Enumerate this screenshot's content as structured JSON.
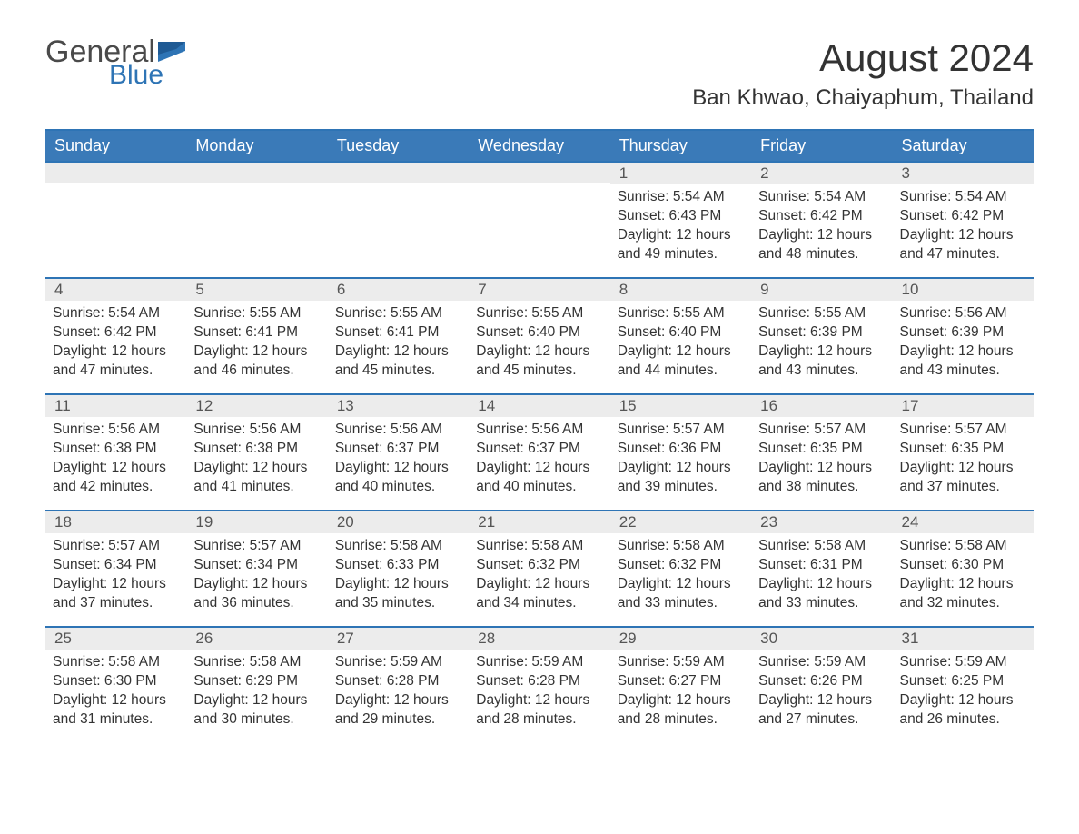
{
  "logo": {
    "text1": "General",
    "text2": "Blue"
  },
  "title": "August 2024",
  "location": "Ban Khwao, Chaiyaphum, Thailand",
  "colors": {
    "header_bg": "#3a7ab8",
    "header_text": "#ffffff",
    "accent_border": "#2e74b5",
    "daynum_bg": "#ececec",
    "text": "#333333",
    "logo_gray": "#4a4a4a",
    "logo_blue": "#2e74b5",
    "background": "#ffffff"
  },
  "typography": {
    "body_fontsize": 15.5,
    "header_fontsize": 18,
    "title_fontsize": 42,
    "location_fontsize": 24
  },
  "day_labels": [
    "Sunday",
    "Monday",
    "Tuesday",
    "Wednesday",
    "Thursday",
    "Friday",
    "Saturday"
  ],
  "weeks": [
    [
      null,
      null,
      null,
      null,
      {
        "n": "1",
        "sunrise": "Sunrise: 5:54 AM",
        "sunset": "Sunset: 6:43 PM",
        "daylight": "Daylight: 12 hours and 49 minutes."
      },
      {
        "n": "2",
        "sunrise": "Sunrise: 5:54 AM",
        "sunset": "Sunset: 6:42 PM",
        "daylight": "Daylight: 12 hours and 48 minutes."
      },
      {
        "n": "3",
        "sunrise": "Sunrise: 5:54 AM",
        "sunset": "Sunset: 6:42 PM",
        "daylight": "Daylight: 12 hours and 47 minutes."
      }
    ],
    [
      {
        "n": "4",
        "sunrise": "Sunrise: 5:54 AM",
        "sunset": "Sunset: 6:42 PM",
        "daylight": "Daylight: 12 hours and 47 minutes."
      },
      {
        "n": "5",
        "sunrise": "Sunrise: 5:55 AM",
        "sunset": "Sunset: 6:41 PM",
        "daylight": "Daylight: 12 hours and 46 minutes."
      },
      {
        "n": "6",
        "sunrise": "Sunrise: 5:55 AM",
        "sunset": "Sunset: 6:41 PM",
        "daylight": "Daylight: 12 hours and 45 minutes."
      },
      {
        "n": "7",
        "sunrise": "Sunrise: 5:55 AM",
        "sunset": "Sunset: 6:40 PM",
        "daylight": "Daylight: 12 hours and 45 minutes."
      },
      {
        "n": "8",
        "sunrise": "Sunrise: 5:55 AM",
        "sunset": "Sunset: 6:40 PM",
        "daylight": "Daylight: 12 hours and 44 minutes."
      },
      {
        "n": "9",
        "sunrise": "Sunrise: 5:55 AM",
        "sunset": "Sunset: 6:39 PM",
        "daylight": "Daylight: 12 hours and 43 minutes."
      },
      {
        "n": "10",
        "sunrise": "Sunrise: 5:56 AM",
        "sunset": "Sunset: 6:39 PM",
        "daylight": "Daylight: 12 hours and 43 minutes."
      }
    ],
    [
      {
        "n": "11",
        "sunrise": "Sunrise: 5:56 AM",
        "sunset": "Sunset: 6:38 PM",
        "daylight": "Daylight: 12 hours and 42 minutes."
      },
      {
        "n": "12",
        "sunrise": "Sunrise: 5:56 AM",
        "sunset": "Sunset: 6:38 PM",
        "daylight": "Daylight: 12 hours and 41 minutes."
      },
      {
        "n": "13",
        "sunrise": "Sunrise: 5:56 AM",
        "sunset": "Sunset: 6:37 PM",
        "daylight": "Daylight: 12 hours and 40 minutes."
      },
      {
        "n": "14",
        "sunrise": "Sunrise: 5:56 AM",
        "sunset": "Sunset: 6:37 PM",
        "daylight": "Daylight: 12 hours and 40 minutes."
      },
      {
        "n": "15",
        "sunrise": "Sunrise: 5:57 AM",
        "sunset": "Sunset: 6:36 PM",
        "daylight": "Daylight: 12 hours and 39 minutes."
      },
      {
        "n": "16",
        "sunrise": "Sunrise: 5:57 AM",
        "sunset": "Sunset: 6:35 PM",
        "daylight": "Daylight: 12 hours and 38 minutes."
      },
      {
        "n": "17",
        "sunrise": "Sunrise: 5:57 AM",
        "sunset": "Sunset: 6:35 PM",
        "daylight": "Daylight: 12 hours and 37 minutes."
      }
    ],
    [
      {
        "n": "18",
        "sunrise": "Sunrise: 5:57 AM",
        "sunset": "Sunset: 6:34 PM",
        "daylight": "Daylight: 12 hours and 37 minutes."
      },
      {
        "n": "19",
        "sunrise": "Sunrise: 5:57 AM",
        "sunset": "Sunset: 6:34 PM",
        "daylight": "Daylight: 12 hours and 36 minutes."
      },
      {
        "n": "20",
        "sunrise": "Sunrise: 5:58 AM",
        "sunset": "Sunset: 6:33 PM",
        "daylight": "Daylight: 12 hours and 35 minutes."
      },
      {
        "n": "21",
        "sunrise": "Sunrise: 5:58 AM",
        "sunset": "Sunset: 6:32 PM",
        "daylight": "Daylight: 12 hours and 34 minutes."
      },
      {
        "n": "22",
        "sunrise": "Sunrise: 5:58 AM",
        "sunset": "Sunset: 6:32 PM",
        "daylight": "Daylight: 12 hours and 33 minutes."
      },
      {
        "n": "23",
        "sunrise": "Sunrise: 5:58 AM",
        "sunset": "Sunset: 6:31 PM",
        "daylight": "Daylight: 12 hours and 33 minutes."
      },
      {
        "n": "24",
        "sunrise": "Sunrise: 5:58 AM",
        "sunset": "Sunset: 6:30 PM",
        "daylight": "Daylight: 12 hours and 32 minutes."
      }
    ],
    [
      {
        "n": "25",
        "sunrise": "Sunrise: 5:58 AM",
        "sunset": "Sunset: 6:30 PM",
        "daylight": "Daylight: 12 hours and 31 minutes."
      },
      {
        "n": "26",
        "sunrise": "Sunrise: 5:58 AM",
        "sunset": "Sunset: 6:29 PM",
        "daylight": "Daylight: 12 hours and 30 minutes."
      },
      {
        "n": "27",
        "sunrise": "Sunrise: 5:59 AM",
        "sunset": "Sunset: 6:28 PM",
        "daylight": "Daylight: 12 hours and 29 minutes."
      },
      {
        "n": "28",
        "sunrise": "Sunrise: 5:59 AM",
        "sunset": "Sunset: 6:28 PM",
        "daylight": "Daylight: 12 hours and 28 minutes."
      },
      {
        "n": "29",
        "sunrise": "Sunrise: 5:59 AM",
        "sunset": "Sunset: 6:27 PM",
        "daylight": "Daylight: 12 hours and 28 minutes."
      },
      {
        "n": "30",
        "sunrise": "Sunrise: 5:59 AM",
        "sunset": "Sunset: 6:26 PM",
        "daylight": "Daylight: 12 hours and 27 minutes."
      },
      {
        "n": "31",
        "sunrise": "Sunrise: 5:59 AM",
        "sunset": "Sunset: 6:25 PM",
        "daylight": "Daylight: 12 hours and 26 minutes."
      }
    ]
  ]
}
